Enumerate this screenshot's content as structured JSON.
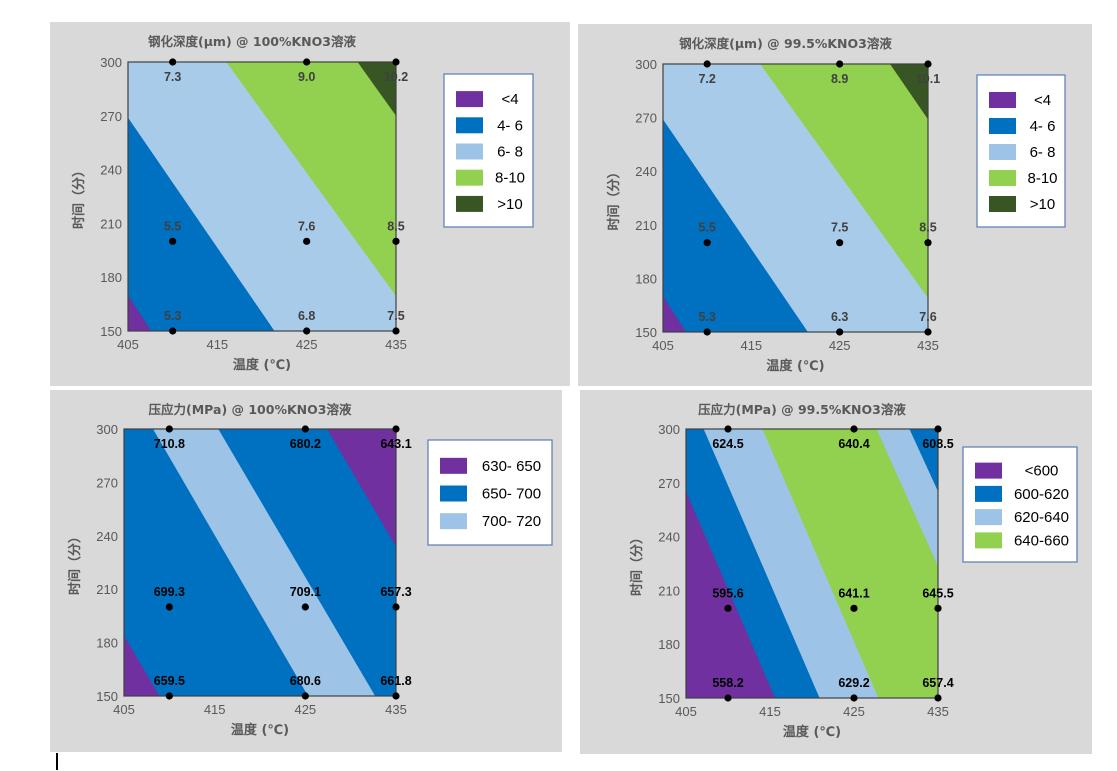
{
  "colors": {
    "purple": "#7030a0",
    "blue": "#0070c0",
    "light_blue": "#9dc3e6",
    "green": "#92d050",
    "dark_green": "#375623",
    "panel_bg": "#d9d9d9"
  },
  "chart_data": [
    {
      "type": "heatmap",
      "title": "钢化深度(μm) @ 100%KNO3溶液",
      "xlabel": "温度 (℃)",
      "ylabel": "时间（分）",
      "xlim": [
        405,
        435
      ],
      "ylim": [
        150,
        300
      ],
      "xticks": [
        "405",
        "415",
        "425",
        "435"
      ],
      "yticks": [
        "150",
        "180",
        "210",
        "240",
        "270",
        "300"
      ],
      "points": [
        {
          "temp": 410,
          "time": 300,
          "value": "7.3"
        },
        {
          "temp": 425,
          "time": 300,
          "value": "9.0"
        },
        {
          "temp": 435,
          "time": 300,
          "value": "10.2"
        },
        {
          "temp": 410,
          "time": 200,
          "value": "5.5"
        },
        {
          "temp": 425,
          "time": 200,
          "value": "7.6"
        },
        {
          "temp": 435,
          "time": 200,
          "value": "8.5"
        },
        {
          "temp": 410,
          "time": 150,
          "value": "5.3"
        },
        {
          "temp": 425,
          "time": 150,
          "value": "6.8"
        },
        {
          "temp": 435,
          "time": 150,
          "value": "7.5"
        }
      ],
      "legend": {
        "position": "right",
        "entries": [
          {
            "label": "<4",
            "color": "#7030a0"
          },
          {
            "label": "4- 6",
            "color": "#0070c0"
          },
          {
            "label": "6- 8",
            "color": "#9dc3e6"
          },
          {
            "label": "8-10",
            "color": "#92d050"
          },
          {
            "label": ">10",
            "color": "#375623"
          }
        ]
      },
      "base_color": "#7030a0",
      "contour_boundaries": [
        {
          "from": [
            405,
            170
          ],
          "to": [
            407.6,
            150
          ],
          "color_beyond": "#0070c0"
        },
        {
          "from": [
            405,
            269
          ],
          "to": [
            421.4,
            150
          ],
          "color_beyond": "#a9cbea"
        },
        {
          "from": [
            416,
            300
          ],
          "to": [
            435,
            169.5
          ],
          "color_beyond": "#92d050"
        },
        {
          "from": [
            430.7,
            300
          ],
          "to": [
            435,
            270
          ],
          "color_beyond": "#375623"
        }
      ],
      "label_color": "#404040"
    },
    {
      "type": "heatmap",
      "title": "钢化深度(μm) @ 99.5%KNO3溶液",
      "xlabel": "温度 (℃)",
      "ylabel": "时间（分）",
      "xlim": [
        405,
        435
      ],
      "ylim": [
        150,
        300
      ],
      "xticks": [
        "405",
        "415",
        "425",
        "435"
      ],
      "yticks": [
        "150",
        "180",
        "210",
        "240",
        "270",
        "300"
      ],
      "points": [
        {
          "temp": 410,
          "time": 300,
          "value": "7.2"
        },
        {
          "temp": 425,
          "time": 300,
          "value": "8.9"
        },
        {
          "temp": 435,
          "time": 300,
          "value": "10.1"
        },
        {
          "temp": 410,
          "time": 200,
          "value": "5.5"
        },
        {
          "temp": 425,
          "time": 200,
          "value": "7.5"
        },
        {
          "temp": 435,
          "time": 200,
          "value": "8.5"
        },
        {
          "temp": 410,
          "time": 150,
          "value": "5.3"
        },
        {
          "temp": 425,
          "time": 150,
          "value": "6.3"
        },
        {
          "temp": 435,
          "time": 150,
          "value": "7.6"
        }
      ],
      "legend": {
        "position": "right",
        "entries": [
          {
            "label": "<4",
            "color": "#7030a0"
          },
          {
            "label": "4- 6",
            "color": "#0070c0"
          },
          {
            "label": "6- 8",
            "color": "#9dc3e6"
          },
          {
            "label": "8-10",
            "color": "#92d050"
          },
          {
            "label": ">10",
            "color": "#375623"
          }
        ]
      },
      "base_color": "#7030a0",
      "contour_boundaries": [
        {
          "from": [
            405,
            170
          ],
          "to": [
            407.6,
            150
          ],
          "color_beyond": "#0070c0"
        },
        {
          "from": [
            405,
            269
          ],
          "to": [
            421.4,
            150
          ],
          "color_beyond": "#a9cbea"
        },
        {
          "from": [
            416,
            300
          ],
          "to": [
            435,
            169
          ],
          "color_beyond": "#92d050"
        },
        {
          "from": [
            430.7,
            300
          ],
          "to": [
            435,
            269
          ],
          "color_beyond": "#375623"
        }
      ],
      "label_color": "#404040"
    },
    {
      "type": "heatmap",
      "title": "压应力(MPa) @ 100%KNO3溶液",
      "xlabel": "温度 (℃)",
      "ylabel": "时间（分）",
      "xlim": [
        405,
        435
      ],
      "ylim": [
        150,
        300
      ],
      "xticks": [
        "405",
        "415",
        "425",
        "435"
      ],
      "yticks": [
        "150",
        "180",
        "210",
        "240",
        "270",
        "300"
      ],
      "points": [
        {
          "temp": 410,
          "time": 300,
          "value": "710.8"
        },
        {
          "temp": 425,
          "time": 300,
          "value": "680.2"
        },
        {
          "temp": 435,
          "time": 300,
          "value": "643.1"
        },
        {
          "temp": 410,
          "time": 200,
          "value": "699.3"
        },
        {
          "temp": 425,
          "time": 200,
          "value": "709.1"
        },
        {
          "temp": 435,
          "time": 200,
          "value": "657.3"
        },
        {
          "temp": 410,
          "time": 150,
          "value": "659.5"
        },
        {
          "temp": 425,
          "time": 150,
          "value": "680.6"
        },
        {
          "temp": 435,
          "time": 150,
          "value": "661.8"
        }
      ],
      "legend": {
        "position": "right",
        "entries": [
          {
            "label": "630- 650",
            "color": "#7030a0"
          },
          {
            "label": "650- 700",
            "color": "#0070c0"
          },
          {
            "label": "700- 720",
            "color": "#9dc3e6"
          }
        ]
      },
      "base_color": "#7030a0",
      "contour_boundaries": [
        {
          "from": [
            405,
            184
          ],
          "to": [
            408.9,
            150
          ],
          "color_beyond": "#0070c0"
        },
        {
          "from": [
            408.2,
            300
          ],
          "to": [
            425.3,
            150
          ],
          "color_beyond": "#9dc3e6"
        },
        {
          "from": [
            415.4,
            300
          ],
          "to": [
            432.7,
            150
          ],
          "color_beyond": "#0070c0"
        },
        {
          "from": [
            427.4,
            300
          ],
          "to": [
            435,
            233.8
          ],
          "color_beyond": "#7030a0"
        }
      ],
      "label_color": "#000000"
    },
    {
      "type": "heatmap",
      "title": "压应力(MPa) @ 99.5%KNO3溶液",
      "xlabel": "温度 (℃)",
      "ylabel": "时间（分）",
      "xlim": [
        405,
        435
      ],
      "ylim": [
        150,
        300
      ],
      "xticks": [
        "405",
        "415",
        "425",
        "435"
      ],
      "yticks": [
        "150",
        "180",
        "210",
        "240",
        "270",
        "300"
      ],
      "points": [
        {
          "temp": 410,
          "time": 300,
          "value": "624.5"
        },
        {
          "temp": 425,
          "time": 300,
          "value": "640.4"
        },
        {
          "temp": 435,
          "time": 300,
          "value": "608.5"
        },
        {
          "temp": 410,
          "time": 200,
          "value": "595.6"
        },
        {
          "temp": 425,
          "time": 200,
          "value": "641.1"
        },
        {
          "temp": 435,
          "time": 200,
          "value": "645.5"
        },
        {
          "temp": 410,
          "time": 150,
          "value": "558.2"
        },
        {
          "temp": 425,
          "time": 150,
          "value": "629.2"
        },
        {
          "temp": 435,
          "time": 150,
          "value": "657.4"
        }
      ],
      "legend": {
        "position": "right",
        "entries": [
          {
            "label": "<600",
            "color": "#7030a0"
          },
          {
            "label": "600-620",
            "color": "#0070c0"
          },
          {
            "label": "620-640",
            "color": "#9dc3e6"
          },
          {
            "label": "640-660",
            "color": "#92d050"
          }
        ]
      },
      "base_color": "#7030a0",
      "contour_boundaries": [
        {
          "from": [
            405,
            265.2
          ],
          "to": [
            415.6,
            150
          ],
          "color_beyond": "#0070c0"
        },
        {
          "from": [
            407.1,
            300
          ],
          "to": [
            420.9,
            150
          ],
          "color_beyond": "#9dc3e6"
        },
        {
          "from": [
            414.1,
            300
          ],
          "to": [
            427.9,
            150
          ],
          "color_beyond": "#92d050"
        },
        {
          "from": [
            427.7,
            300
          ],
          "to": [
            435,
            223.4
          ],
          "color_beyond": "#9dc3e6"
        },
        {
          "from": [
            431.6,
            300
          ],
          "to": [
            435,
            265.2
          ],
          "color_beyond": "#0070c0"
        }
      ],
      "label_color": "#000000"
    }
  ]
}
